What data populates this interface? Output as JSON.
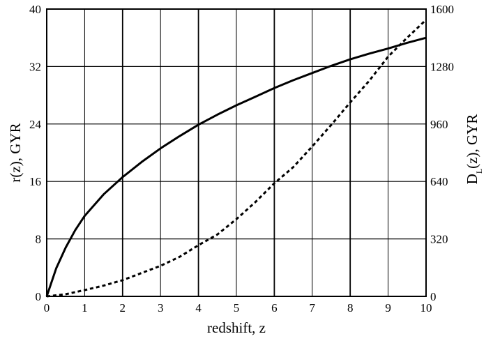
{
  "chart_data": {
    "type": "line",
    "xlabel": "redshift, z",
    "ylabel_left": "r(z), GYR",
    "ylabel_right": {
      "main_prefix": "D",
      "subscript": "L",
      "main_suffix": "(z), GYR"
    },
    "xlim": [
      0,
      10
    ],
    "ylim_left": [
      0,
      40
    ],
    "ylim_right": [
      0,
      1600
    ],
    "x_ticks": [
      "0",
      "1",
      "2",
      "3",
      "4",
      "5",
      "6",
      "7",
      "8",
      "9",
      "10"
    ],
    "y_left_ticks": [
      "0",
      "8",
      "16",
      "24",
      "32",
      "40"
    ],
    "y_right_ticks": [
      "0",
      "320",
      "640",
      "960",
      "1280",
      "1600"
    ],
    "grid": true,
    "series": [
      {
        "axis": "left",
        "style": "solid",
        "color": "#000000",
        "x": [
          0,
          0.25,
          0.5,
          0.75,
          1,
          1.5,
          2,
          2.5,
          3,
          3.5,
          4,
          4.5,
          5,
          5.5,
          6,
          6.5,
          7,
          7.5,
          8,
          8.5,
          9,
          9.5,
          10
        ],
        "y": [
          0,
          3.9,
          6.8,
          9.2,
          11.2,
          14.2,
          16.6,
          18.7,
          20.6,
          22.3,
          23.9,
          25.3,
          26.6,
          27.8,
          29.0,
          30.1,
          31.1,
          32.1,
          33.0,
          33.8,
          34.5,
          35.3,
          36.0
        ]
      },
      {
        "axis": "right",
        "style": "dashed",
        "color": "#000000",
        "x": [
          0,
          0.5,
          1,
          1.5,
          2,
          2.5,
          3,
          3.5,
          4,
          4.5,
          5,
          5.5,
          6,
          6.5,
          7,
          7.5,
          8,
          8.5,
          9,
          9.5,
          10
        ],
        "y": [
          0,
          12,
          35,
          60,
          90,
          130,
          170,
          220,
          285,
          345,
          430,
          525,
          630,
          720,
          835,
          955,
          1080,
          1200,
          1335,
          1440,
          1540
        ]
      }
    ]
  }
}
